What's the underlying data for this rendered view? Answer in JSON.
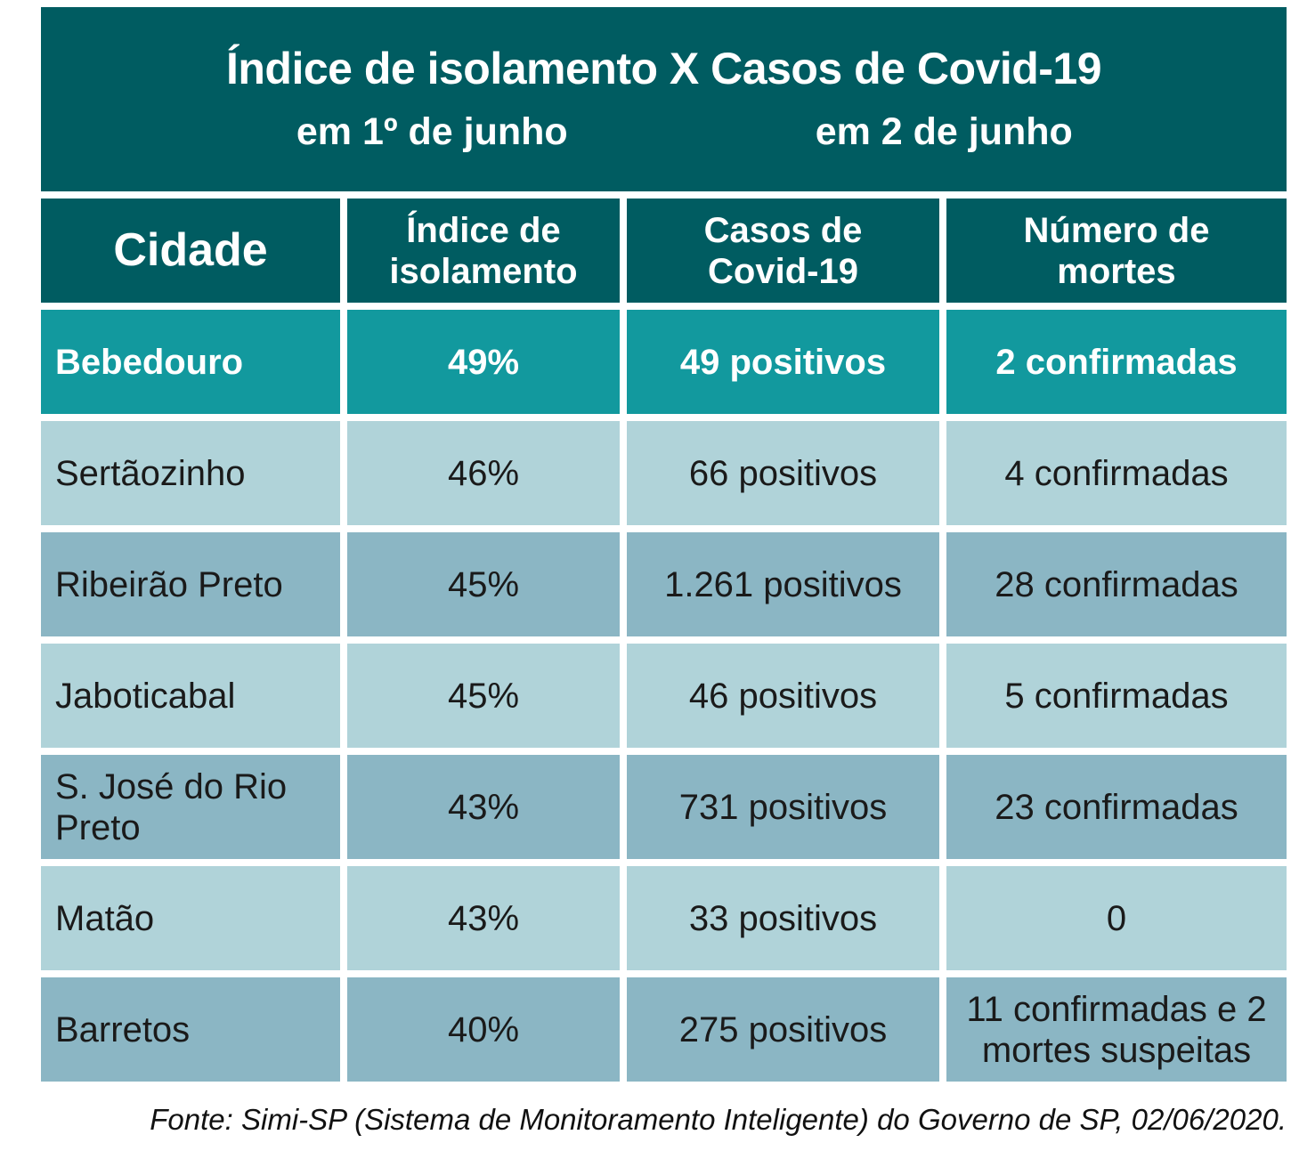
{
  "title": {
    "line1": "Índice de isolamento X Casos de Covid-19",
    "subtitle_left": "em 1º de junho",
    "subtitle_right": "em 2 de junho"
  },
  "table": {
    "columns": [
      "Cidade",
      "Índice de isolamento",
      "Casos de Covid-19",
      "Número de mortes"
    ],
    "rows": [
      {
        "city": "Bebedouro",
        "isolation": "49%",
        "cases": "49 positivos",
        "deaths": "2 confirmadas",
        "highlight": true
      },
      {
        "city": "Sertãozinho",
        "isolation": "46%",
        "cases": "66 positivos",
        "deaths": "4 confirmadas",
        "highlight": false
      },
      {
        "city": "Ribeirão Preto",
        "isolation": "45%",
        "cases": "1.261 positivos",
        "deaths": "28 confirmadas",
        "highlight": false
      },
      {
        "city": "Jaboticabal",
        "isolation": "45%",
        "cases": "46 positivos",
        "deaths": "5 confirmadas",
        "highlight": false
      },
      {
        "city": "S. José do Rio Preto",
        "isolation": "43%",
        "cases": "731 positivos",
        "deaths": "23 confirmadas",
        "highlight": false
      },
      {
        "city": "Matão",
        "isolation": "43%",
        "cases": "33 positivos",
        "deaths": "0",
        "highlight": false
      },
      {
        "city": "Barretos",
        "isolation": "40%",
        "cases": "275 positivos",
        "deaths": "11 confirmadas e 2 mortes suspeitas",
        "highlight": false
      }
    ]
  },
  "footer": {
    "source": "Fonte: Simi-SP (Sistema de Monitoramento Inteligente) do Governo de SP, 02/06/2020."
  },
  "colors": {
    "header_teal": "#005C61",
    "highlight_teal": "#12999E",
    "row_light": "#B0D3D9",
    "row_medium": "#8BB6C4",
    "text_dark": "#1A1A1A",
    "text_white": "#FFFFFF"
  },
  "chart_data": {
    "type": "table",
    "title": "Índice de isolamento X Casos de Covid-19",
    "subtitles": [
      "em 1º de junho",
      "em 2 de junho"
    ],
    "columns": [
      "Cidade",
      "Índice de isolamento (em 1º de junho)",
      "Casos de Covid-19 (em 2 de junho)",
      "Número de mortes"
    ],
    "rows": [
      [
        "Bebedouro",
        "49%",
        "49 positivos",
        "2 confirmadas"
      ],
      [
        "Sertãozinho",
        "46%",
        "66 positivos",
        "4 confirmadas"
      ],
      [
        "Ribeirão Preto",
        "45%",
        "1.261 positivos",
        "28 confirmadas"
      ],
      [
        "Jaboticabal",
        "45%",
        "46 positivos",
        "5 confirmadas"
      ],
      [
        "S. José do Rio Preto",
        "43%",
        "731 positivos",
        "23 confirmadas"
      ],
      [
        "Matão",
        "43%",
        "33 positivos",
        "0"
      ],
      [
        "Barretos",
        "40%",
        "275 positivos",
        "11 confirmadas e 2 mortes suspeitas"
      ]
    ],
    "isolation_percent": [
      49,
      46,
      45,
      45,
      43,
      43,
      40
    ],
    "positive_cases": [
      49,
      66,
      1261,
      46,
      731,
      33,
      275
    ],
    "confirmed_deaths": [
      2,
      4,
      28,
      5,
      23,
      0,
      11
    ],
    "suspected_deaths": [
      0,
      0,
      0,
      0,
      0,
      0,
      2
    ],
    "source": "Fonte: Simi-SP (Sistema de Monitoramento Inteligente) do Governo de SP, 02/06/2020."
  }
}
